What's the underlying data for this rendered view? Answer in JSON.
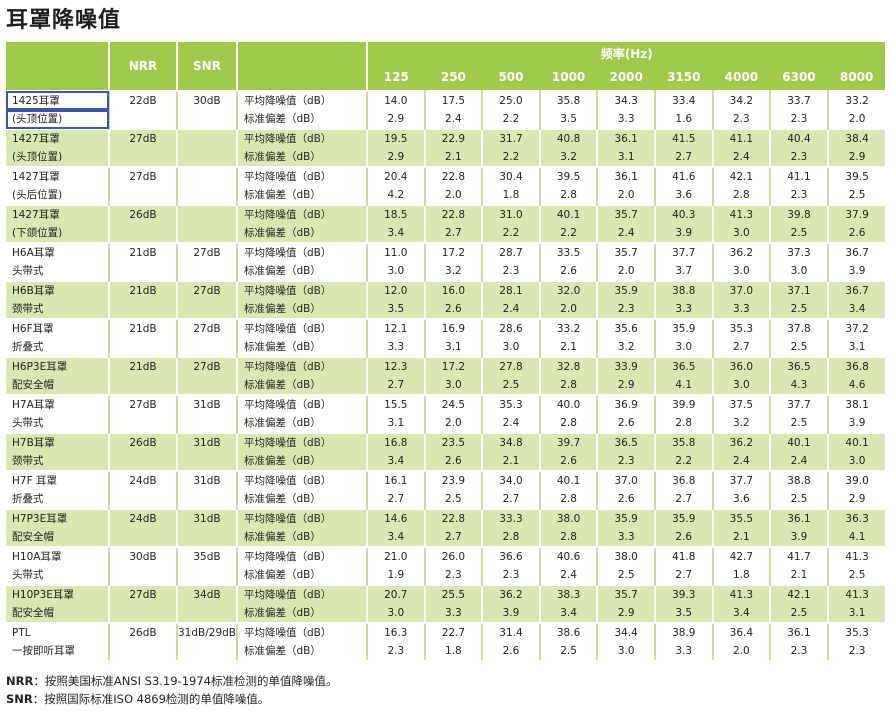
{
  "title": "耳罩降噪值",
  "header": {
    "nrr": "NRR",
    "snr": "SNR",
    "freq_label": "频率(Hz)",
    "freqs": [
      "125",
      "250",
      "500",
      "1000",
      "2000",
      "3150",
      "4000",
      "6300",
      "8000"
    ]
  },
  "rows": [
    {
      "m1": "1425耳罩",
      "m2": "(头顶位置)",
      "nrr": "22dB",
      "snr": "30dB",
      "l1": "平均降噪值（dB）",
      "l2": "标准偏差（dB）",
      "a": [
        "14.0",
        "17.5",
        "25.0",
        "35.8",
        "34.3",
        "33.4",
        "34.2",
        "33.7",
        "33.2"
      ],
      "s": [
        "2.9",
        "2.4",
        "2.2",
        "3.5",
        "3.3",
        "1.6",
        "2.3",
        "2.3",
        "2.0"
      ]
    },
    {
      "m1": "1427耳罩",
      "m2": "(头顶位置)",
      "nrr": "27dB",
      "snr": "",
      "l1": "平均降噪值（dB）",
      "l2": "标准偏差（dB）",
      "a": [
        "19.5",
        "22.9",
        "31.7",
        "40.8",
        "36.1",
        "41.5",
        "41.1",
        "40.4",
        "38.4"
      ],
      "s": [
        "2.9",
        "2.1",
        "2.2",
        "3.2",
        "3.1",
        "2.7",
        "2.4",
        "2.3",
        "2.9"
      ]
    },
    {
      "m1": "1427耳罩",
      "m2": "(头后位置)",
      "nrr": "27dB",
      "snr": "",
      "l1": "平均降噪值（dB）",
      "l2": "标准偏差（dB）",
      "a": [
        "20.4",
        "22.8",
        "30.4",
        "39.5",
        "36.1",
        "41.6",
        "42.1",
        "41.1",
        "39.5"
      ],
      "s": [
        "4.2",
        "2.0",
        "1.8",
        "2.8",
        "2.0",
        "3.6",
        "2.8",
        "2.3",
        "2.5"
      ]
    },
    {
      "m1": "1427耳罩",
      "m2": "(下颌位置)",
      "nrr": "26dB",
      "snr": "",
      "l1": "平均降噪值（dB）",
      "l2": "标准偏差（dB）",
      "a": [
        "18.5",
        "22.8",
        "31.0",
        "40.1",
        "35.7",
        "40.3",
        "41.3",
        "39.8",
        "37.9"
      ],
      "s": [
        "3.4",
        "2.7",
        "2.2",
        "2.2",
        "2.4",
        "3.9",
        "3.0",
        "2.5",
        "2.6"
      ]
    },
    {
      "m1": "H6A耳罩",
      "m2": "头带式",
      "nrr": "21dB",
      "snr": "27dB",
      "l1": "平均降噪值（dB）",
      "l2": "标准偏差（dB）",
      "a": [
        "11.0",
        "17.2",
        "28.7",
        "33.5",
        "35.7",
        "37.7",
        "36.2",
        "37.3",
        "36.7"
      ],
      "s": [
        "3.0",
        "3.2",
        "2.3",
        "2.6",
        "2.0",
        "3.7",
        "3.0",
        "3.0",
        "3.9"
      ]
    },
    {
      "m1": "H6B耳罩",
      "m2": "颈带式",
      "nrr": "21dB",
      "snr": "27dB",
      "l1": "平均降噪值（dB）",
      "l2": "标准偏差（dB）",
      "a": [
        "12.0",
        "16.0",
        "28.1",
        "32.0",
        "35.9",
        "38.8",
        "37.0",
        "37.1",
        "36.7"
      ],
      "s": [
        "3.5",
        "2.6",
        "2.4",
        "2.0",
        "2.3",
        "3.3",
        "3.3",
        "2.5",
        "3.4"
      ]
    },
    {
      "m1": "H6F耳罩",
      "m2": "折叠式",
      "nrr": "21dB",
      "snr": "27dB",
      "l1": "平均降噪值（dB）",
      "l2": "标准偏差（dB）",
      "a": [
        "12.1",
        "16.9",
        "28.6",
        "33.2",
        "35.6",
        "35.9",
        "35.3",
        "37.8",
        "37.2"
      ],
      "s": [
        "3.3",
        "3.1",
        "3.0",
        "2.1",
        "3.2",
        "3.0",
        "2.7",
        "2.5",
        "3.1"
      ]
    },
    {
      "m1": "H6P3E耳罩",
      "m2": "配安全帽",
      "nrr": "21dB",
      "snr": "27dB",
      "l1": "平均降噪值（dB）",
      "l2": "标准偏差（dB）",
      "a": [
        "12.3",
        "17.2",
        "27.8",
        "32.8",
        "33.9",
        "36.5",
        "36.0",
        "36.5",
        "36.8"
      ],
      "s": [
        "2.7",
        "3.0",
        "2.5",
        "2.8",
        "2.9",
        "4.1",
        "3.0",
        "4.3",
        "4.6"
      ]
    },
    {
      "m1": "H7A耳罩",
      "m2": "头带式",
      "nrr": "27dB",
      "snr": "31dB",
      "l1": "平均降噪值（dB）",
      "l2": "标准偏差（dB）",
      "a": [
        "15.5",
        "24.5",
        "35.3",
        "40.0",
        "36.9",
        "39.9",
        "37.5",
        "37.7",
        "38.1"
      ],
      "s": [
        "3.1",
        "2.0",
        "2.4",
        "2.8",
        "2.6",
        "2.8",
        "3.2",
        "2.5",
        "3.9"
      ]
    },
    {
      "m1": "H7B耳罩",
      "m2": "颈带式",
      "nrr": "26dB",
      "snr": "31dB",
      "l1": "平均降噪值（dB）",
      "l2": "标准偏差（dB）",
      "a": [
        "16.8",
        "23.5",
        "34.8",
        "39.7",
        "36.5",
        "35.8",
        "36.2",
        "40.1",
        "40.1"
      ],
      "s": [
        "3.4",
        "2.6",
        "2.1",
        "2.6",
        "2.3",
        "2.2",
        "2.4",
        "2.4",
        "3.0"
      ]
    },
    {
      "m1": "H7F 耳罩",
      "m2": "折叠式",
      "nrr": "24dB",
      "snr": "31dB",
      "l1": "平均降噪值（dB）",
      "l2": "标准偏差（dB）",
      "a": [
        "16.1",
        "23.9",
        "34.0",
        "40.1",
        "37.0",
        "36.8",
        "37.7",
        "38.8",
        "39.0"
      ],
      "s": [
        "2.7",
        "2.5",
        "2.7",
        "2.8",
        "2.6",
        "2.7",
        "3.6",
        "2.5",
        "2.9"
      ]
    },
    {
      "m1": "H7P3E耳罩",
      "m2": "配安全帽",
      "nrr": "24dB",
      "snr": "31dB",
      "l1": "平均降噪值（dB）",
      "l2": "标准偏差（dB）",
      "a": [
        "14.6",
        "22.8",
        "33.3",
        "38.0",
        "35.9",
        "35.9",
        "35.5",
        "36.1",
        "36.3"
      ],
      "s": [
        "3.4",
        "2.7",
        "2.8",
        "2.8",
        "3.3",
        "2.6",
        "2.1",
        "3.9",
        "4.1"
      ]
    },
    {
      "m1": "H10A耳罩",
      "m2": "头带式",
      "nrr": "30dB",
      "snr": "35dB",
      "l1": "平均降噪值（dB）",
      "l2": "标准偏差（dB）",
      "a": [
        "21.0",
        "26.0",
        "36.6",
        "40.6",
        "38.0",
        "41.8",
        "42.7",
        "41.7",
        "41.3"
      ],
      "s": [
        "1.9",
        "2.3",
        "2.3",
        "2.4",
        "2.5",
        "2.7",
        "1.8",
        "2.1",
        "2.5"
      ]
    },
    {
      "m1": "H10P3E耳罩",
      "m2": "配安全帽",
      "nrr": "27dB",
      "snr": "34dB",
      "l1": "平均降噪值（dB）",
      "l2": "标准偏差（dB）",
      "a": [
        "20.7",
        "25.5",
        "36.2",
        "38.3",
        "35.7",
        "39.3",
        "41.3",
        "42.1",
        "41.3"
      ],
      "s": [
        "3.0",
        "3.3",
        "3.9",
        "3.4",
        "2.9",
        "3.5",
        "3.4",
        "2.5",
        "3.1"
      ]
    },
    {
      "m1": "PTL",
      "m2": "一按即听耳罩",
      "nrr": "26dB",
      "snr": "31dB/29dB",
      "l1": "平均降噪值（dB）",
      "l2": "标准偏差（dB）",
      "a": [
        "16.3",
        "22.7",
        "31.4",
        "38.6",
        "34.4",
        "38.9",
        "36.4",
        "36.1",
        "35.3"
      ],
      "s": [
        "2.3",
        "1.8",
        "2.6",
        "2.5",
        "3.0",
        "3.3",
        "2.0",
        "2.3",
        "2.3"
      ]
    }
  ],
  "notes": {
    "nrr_key": "NRR",
    "nrr_text": "：按照美国标准ANSI S3.19-1974标准检测的单值降噪值。",
    "snr_key": "SNR",
    "snr_text": "：按照国际标准ISO 4869检测的单值降噪值。"
  }
}
